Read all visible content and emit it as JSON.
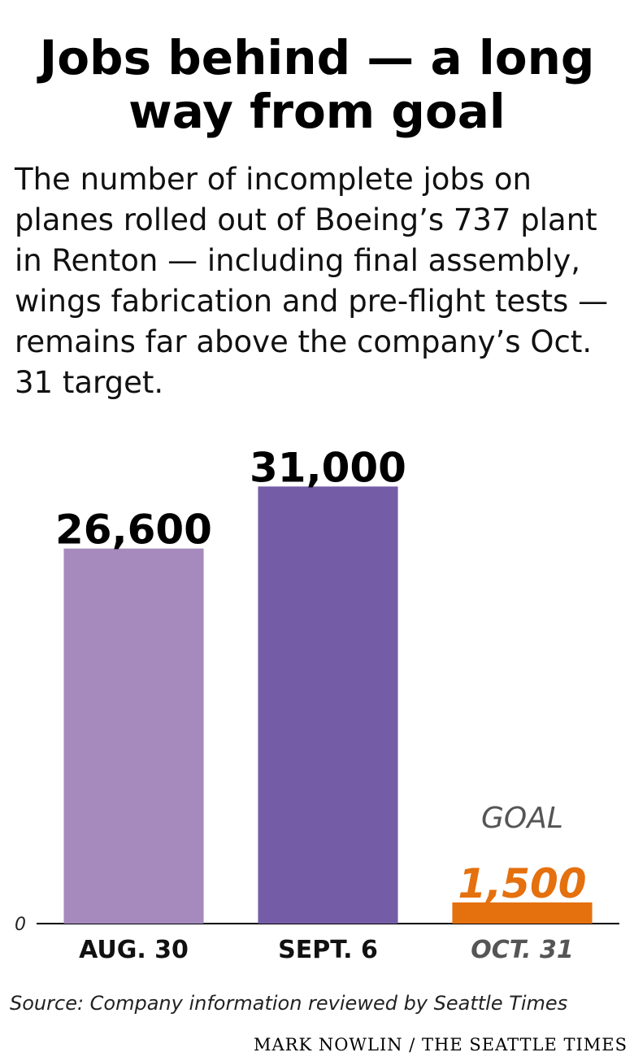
{
  "chart_data": {
    "type": "bar",
    "title": "Jobs behind — a long way from goal",
    "subtitle": "The number of incomplete jobs on planes rolled out of Boeing’s 737 plant in Renton — including final assembly, wings fabrication and pre-flight tests — remains far above the company’s Oct. 31 target.",
    "categories": [
      "AUG.  30",
      "SEPT. 6",
      "OCT. 31"
    ],
    "values": [
      26600,
      31000,
      1500
    ],
    "value_labels": [
      "26,600",
      "31,000",
      "1,500"
    ],
    "colors": [
      "#a68abd",
      "#755ca6",
      "#e5700e"
    ],
    "annotation": "GOAL",
    "ylim": [
      0,
      35000
    ],
    "yticks": [
      0
    ],
    "source": "Source: Company information reviewed by Seattle Times",
    "credit": "MARK NOWLIN / THE SEATTLE TIMES"
  }
}
